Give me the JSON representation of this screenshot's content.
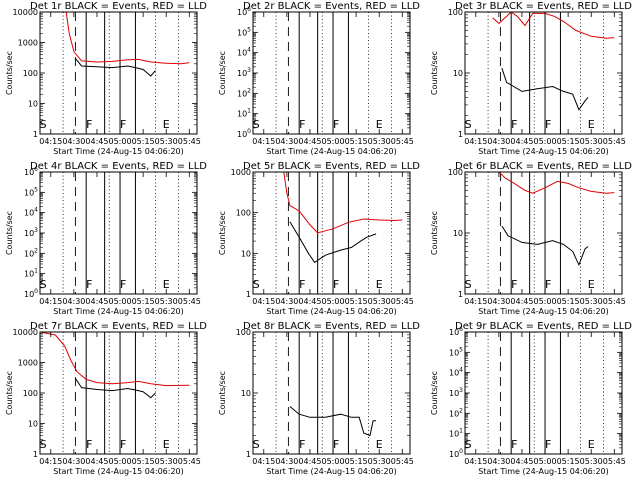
{
  "page": {
    "x_ticks": [
      "04:15",
      "04:30",
      "04:45",
      "05:00",
      "05:15",
      "05:30",
      "05:45"
    ],
    "x_label": "Start Time (24-Aug-15 04:06:20)",
    "y_label": "Counts/sec",
    "series": [
      "Events",
      "LLD"
    ],
    "colors": {
      "events": "#000000",
      "lld": "#e00000"
    },
    "marker_labels": {
      "S": "S",
      "F": "F",
      "E": "E"
    }
  },
  "chart_data": [
    {
      "type": "line",
      "title": "Det 1r BLACK = Events, RED = LLD",
      "y_scale": "log",
      "ylim": [
        1,
        10000
      ],
      "y_ticks": [
        "1",
        "10",
        "100",
        "1000",
        "10000"
      ],
      "x_range": [
        "04:08",
        "05:50"
      ],
      "markers": [
        "S",
        "F",
        "F",
        "E"
      ],
      "events": [
        [
          "04:31",
          300
        ],
        [
          "04:35",
          170
        ],
        [
          "04:45",
          160
        ],
        [
          "04:55",
          150
        ],
        [
          "05:05",
          170
        ],
        [
          "05:10",
          150
        ],
        [
          "05:15",
          130
        ],
        [
          "05:20",
          80
        ],
        [
          "05:23",
          120
        ]
      ],
      "lld": [
        [
          "04:08",
          10000
        ],
        [
          "04:25",
          10000
        ],
        [
          "04:27",
          2000
        ],
        [
          "04:30",
          500
        ],
        [
          "04:35",
          250
        ],
        [
          "04:45",
          230
        ],
        [
          "04:55",
          240
        ],
        [
          "05:05",
          270
        ],
        [
          "05:12",
          280
        ],
        [
          "05:20",
          230
        ],
        [
          "05:30",
          210
        ],
        [
          "05:40",
          200
        ],
        [
          "05:45",
          220
        ]
      ]
    },
    {
      "type": "line",
      "title": "Det 2r BLACK = Events, RED = LLD",
      "y_scale": "log",
      "ylim": [
        1,
        1000000
      ],
      "y_ticks": [
        "10^0",
        "10^1",
        "10^2",
        "10^3",
        "10^4",
        "10^5",
        "10^6"
      ],
      "x_range": [
        "04:08",
        "05:50"
      ],
      "markers": [
        "S",
        "F",
        "F",
        "E"
      ],
      "events": [],
      "lld": []
    },
    {
      "type": "line",
      "title": "Det 3r BLACK = Events, RED = LLD",
      "y_scale": "log",
      "ylim": [
        1,
        100
      ],
      "y_ticks": [
        "1",
        "10",
        "100"
      ],
      "x_range": [
        "04:08",
        "05:50"
      ],
      "markers": [
        "S",
        "F",
        "F",
        "E"
      ],
      "events": [
        [
          "04:32",
          12
        ],
        [
          "04:35",
          7
        ],
        [
          "04:45",
          5
        ],
        [
          "04:55",
          5.5
        ],
        [
          "05:05",
          6
        ],
        [
          "05:12",
          5
        ],
        [
          "05:18",
          4.5
        ],
        [
          "05:22",
          2.5
        ],
        [
          "05:26",
          3.5
        ],
        [
          "05:28",
          4
        ]
      ],
      "lld": [
        [
          "04:26",
          80
        ],
        [
          "04:30",
          65
        ],
        [
          "04:38",
          100
        ],
        [
          "04:42",
          85
        ],
        [
          "04:47",
          60
        ],
        [
          "04:52",
          95
        ],
        [
          "05:00",
          95
        ],
        [
          "05:06",
          85
        ],
        [
          "05:12",
          70
        ],
        [
          "05:20",
          50
        ],
        [
          "05:30",
          40
        ],
        [
          "05:40",
          37
        ],
        [
          "05:45",
          38
        ]
      ]
    },
    {
      "type": "line",
      "title": "Det 4r BLACK = Events, RED = LLD",
      "y_scale": "log",
      "ylim": [
        1,
        1000000
      ],
      "y_ticks": [
        "10^0",
        "10^1",
        "10^2",
        "10^3",
        "10^4",
        "10^5",
        "10^6"
      ],
      "x_range": [
        "04:08",
        "05:50"
      ],
      "markers": [
        "S",
        "F",
        "F",
        "E"
      ],
      "events": [],
      "lld": []
    },
    {
      "type": "line",
      "title": "Det 5r BLACK = Events, RED = LLD",
      "y_scale": "log",
      "ylim": [
        1,
        1000
      ],
      "y_ticks": [
        "1",
        "10",
        "100",
        "1000"
      ],
      "x_range": [
        "04:08",
        "05:50"
      ],
      "markers": [
        "S",
        "F",
        "F",
        "E"
      ],
      "events": [
        [
          "04:32",
          60
        ],
        [
          "04:38",
          25
        ],
        [
          "04:44",
          10
        ],
        [
          "04:48",
          6
        ],
        [
          "04:55",
          9
        ],
        [
          "05:05",
          12
        ],
        [
          "05:12",
          14
        ],
        [
          "05:18",
          20
        ],
        [
          "05:22",
          25
        ],
        [
          "05:28",
          30
        ]
      ],
      "lld": [
        [
          "04:28",
          1000
        ],
        [
          "04:30",
          300
        ],
        [
          "04:32",
          150
        ],
        [
          "04:38",
          110
        ],
        [
          "04:45",
          50
        ],
        [
          "04:50",
          32
        ],
        [
          "05:00",
          40
        ],
        [
          "05:10",
          58
        ],
        [
          "05:20",
          70
        ],
        [
          "05:30",
          66
        ],
        [
          "05:40",
          64
        ],
        [
          "05:45",
          66
        ]
      ]
    },
    {
      "type": "line",
      "title": "Det 6r BLACK = Events, RED = LLD",
      "y_scale": "log",
      "ylim": [
        1,
        100
      ],
      "y_ticks": [
        "1",
        "10",
        "100"
      ],
      "x_range": [
        "04:08",
        "05:50"
      ],
      "markers": [
        "S",
        "F",
        "F",
        "E"
      ],
      "events": [
        [
          "04:32",
          13
        ],
        [
          "04:36",
          9
        ],
        [
          "04:45",
          7
        ],
        [
          "04:55",
          6.5
        ],
        [
          "05:05",
          7.5
        ],
        [
          "05:12",
          6.5
        ],
        [
          "05:18",
          5
        ],
        [
          "05:22",
          3
        ],
        [
          "05:26",
          5.5
        ],
        [
          "05:28",
          6
        ]
      ],
      "lld": [
        [
          "04:30",
          100
        ],
        [
          "04:34",
          80
        ],
        [
          "04:40",
          65
        ],
        [
          "04:47",
          50
        ],
        [
          "04:52",
          45
        ],
        [
          "05:00",
          55
        ],
        [
          "05:08",
          70
        ],
        [
          "05:15",
          65
        ],
        [
          "05:22",
          55
        ],
        [
          "05:30",
          48
        ],
        [
          "05:40",
          45
        ],
        [
          "05:45",
          46
        ]
      ]
    },
    {
      "type": "line",
      "title": "Det 7r BLACK = Events, RED = LLD",
      "y_scale": "log",
      "ylim": [
        1,
        10000
      ],
      "y_ticks": [
        "1",
        "10",
        "100",
        "1000",
        "10000"
      ],
      "x_range": [
        "04:08",
        "05:50"
      ],
      "markers": [
        "S",
        "F",
        "F",
        "E"
      ],
      "events": [
        [
          "04:31",
          300
        ],
        [
          "04:35",
          150
        ],
        [
          "04:45",
          130
        ],
        [
          "04:55",
          120
        ],
        [
          "05:05",
          140
        ],
        [
          "05:10",
          125
        ],
        [
          "05:15",
          110
        ],
        [
          "05:20",
          70
        ],
        [
          "05:23",
          100
        ]
      ],
      "lld": [
        [
          "04:08",
          10000
        ],
        [
          "04:18",
          8000
        ],
        [
          "04:24",
          3500
        ],
        [
          "04:28",
          1200
        ],
        [
          "04:32",
          500
        ],
        [
          "04:38",
          280
        ],
        [
          "04:45",
          220
        ],
        [
          "04:55",
          200
        ],
        [
          "05:05",
          220
        ],
        [
          "05:12",
          240
        ],
        [
          "05:20",
          200
        ],
        [
          "05:30",
          175
        ],
        [
          "05:45",
          180
        ]
      ]
    },
    {
      "type": "line",
      "title": "Det 8r BLACK = Events, RED = LLD",
      "y_scale": "log",
      "ylim": [
        1,
        100
      ],
      "y_ticks": [
        "1",
        "10",
        "100"
      ],
      "x_range": [
        "04:08",
        "05:50"
      ],
      "markers": [
        "S",
        "F",
        "F",
        "E"
      ],
      "events": [
        [
          "04:32",
          6
        ],
        [
          "04:38",
          4.5
        ],
        [
          "04:45",
          4
        ],
        [
          "04:55",
          4
        ],
        [
          "05:05",
          4.5
        ],
        [
          "05:12",
          4
        ],
        [
          "05:17",
          4
        ],
        [
          "05:20",
          2.2
        ],
        [
          "05:24",
          2
        ],
        [
          "05:26",
          3.5
        ],
        [
          "05:28",
          3.5
        ]
      ],
      "lld": []
    },
    {
      "type": "line",
      "title": "Det 9r BLACK = Events, RED = LLD",
      "y_scale": "log",
      "ylim": [
        1,
        1000000
      ],
      "y_ticks": [
        "10^0",
        "10^1",
        "10^2",
        "10^3",
        "10^4",
        "10^5",
        "10^6"
      ],
      "x_range": [
        "04:08",
        "05:50"
      ],
      "markers": [
        "S",
        "F",
        "F",
        "E"
      ],
      "events": [],
      "lld": []
    }
  ]
}
